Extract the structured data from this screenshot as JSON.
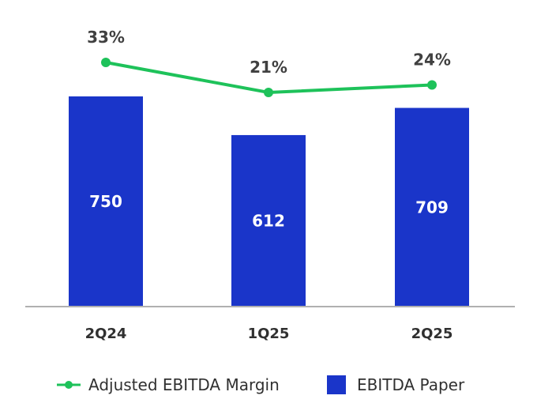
{
  "chart_data": {
    "type": "bar",
    "categories": [
      "2Q24",
      "1Q25",
      "2Q25"
    ],
    "series": [
      {
        "name": "EBITDA Paper",
        "type": "bar",
        "values": [
          750,
          612,
          709
        ],
        "labels": [
          "750",
          "612",
          "709"
        ],
        "color": "#1a35c9"
      },
      {
        "name": "Adjusted EBITDA Margin",
        "type": "line",
        "values": [
          33,
          21,
          24
        ],
        "labels": [
          "33%",
          "21%",
          "24%"
        ],
        "color": "#1ec25a"
      }
    ],
    "title": "",
    "xlabel": "",
    "ylabel": "",
    "legend": "bottom-center",
    "grid": false
  }
}
